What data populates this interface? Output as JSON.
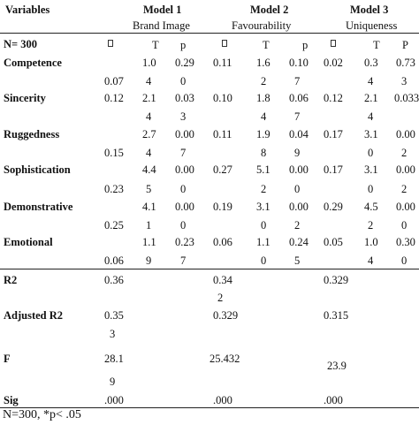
{
  "header": {
    "variables": "Variables",
    "models": [
      {
        "title": "Model 1",
        "subtitle": "Brand Image"
      },
      {
        "title": "Model 2",
        "subtitle": "Favourability"
      },
      {
        "title": "Model 3",
        "subtitle": "Uniqueness"
      }
    ]
  },
  "sample_label": "N= 300",
  "col_heads": {
    "m1": {
      "beta_icon": "beta-glyph-box",
      "t": "T",
      "p": "p"
    },
    "m2": {
      "beta_icon": "beta-glyph-box",
      "t": "T",
      "p": "p"
    },
    "m3": {
      "beta_icon": "beta-glyph-box",
      "t": "T",
      "p": "P"
    }
  },
  "rows": [
    {
      "label": "Competence",
      "m1": {
        "b": "0.07",
        "t1": "1.0",
        "t2": "4",
        "p1": "0.29",
        "p2": "0"
      },
      "m2": {
        "b": "0.11",
        "t1": "1.6",
        "t2": "2",
        "p1": "0.10",
        "p2": "7"
      },
      "m3": {
        "b": "0.02",
        "t1": "0.3",
        "t2": "4",
        "p1": "0.73",
        "p2": "3"
      }
    },
    {
      "label": "Sincerity",
      "m1": {
        "b": "0.12",
        "t1": "2.1",
        "t2": "4",
        "p1": "0.03",
        "p2": "3"
      },
      "m2": {
        "b": "0.10",
        "t1": "1.8",
        "t2": "4",
        "p1": "0.06",
        "p2": "7"
      },
      "m3": {
        "b": "0.12",
        "t1": "2.1",
        "t2": "4",
        "p1": "0.033",
        "p2": ""
      }
    },
    {
      "label": "Ruggedness",
      "m1": {
        "b": "0.15",
        "t1": "2.7",
        "t2": "4",
        "p1": "0.00",
        "p2": "7"
      },
      "m2": {
        "b": "0.11",
        "t1": "1.9",
        "t2": "8",
        "p1": "0.04",
        "p2": "9"
      },
      "m3": {
        "b": "0.17",
        "t1": "3.1",
        "t2": "0",
        "p1": "0.00",
        "p2": "2"
      }
    },
    {
      "label": "Sophistication",
      "m1": {
        "b": "0.23",
        "t1": "4.4",
        "t2": "5",
        "p1": "0.00",
        "p2": "0"
      },
      "m2": {
        "b": "0.27",
        "t1": "5.1",
        "t2": "2",
        "p1": "0.00",
        "p2": "0"
      },
      "m3": {
        "b": "0.17",
        "t1": "3.1",
        "t2": "0",
        "p1": "0.00",
        "p2": "2"
      }
    },
    {
      "label": "Demonstrative",
      "m1": {
        "b": "0.25",
        "t1": "4.1",
        "t2": "1",
        "p1": "0.00",
        "p2": "0"
      },
      "m2": {
        "b": "0.19",
        "t1": "3.1",
        "t2": "0",
        "p1": "0.00",
        "p2": "2"
      },
      "m3": {
        "b": "0.29",
        "t1": "4.5",
        "t2": "2",
        "p1": "0.00",
        "p2": "0"
      }
    },
    {
      "label": "Emotional",
      "m1": {
        "b": "0.06",
        "t1": "1.1",
        "t2": "9",
        "p1": "0.23",
        "p2": "7"
      },
      "m2": {
        "b": "0.06",
        "t1": "1.1",
        "t2": "0",
        "p1": "0.24",
        "p2": "5"
      },
      "m3": {
        "b": "0.05",
        "t1": "1.0",
        "t2": "4",
        "p1": "0.30",
        "p2": "0"
      }
    }
  ],
  "stats": {
    "r2": {
      "label": "R2",
      "m1": "0.36",
      "m2a": "0.34",
      "m2b": "2",
      "m3": "0.329"
    },
    "adj_r2": {
      "label": "Adjusted R2",
      "m1a": "0.35",
      "m1b": "3",
      "m2": "0.329",
      "m3": "0.315"
    },
    "f": {
      "label": "F",
      "m1a": "28.1",
      "m1b": "9",
      "m2": "25.432",
      "m3": "23.9"
    },
    "sig": {
      "label": "Sig",
      "m1": ".000",
      "m2": ".000",
      "m3": ".000"
    }
  },
  "footnote": "N=300, *p< .05"
}
